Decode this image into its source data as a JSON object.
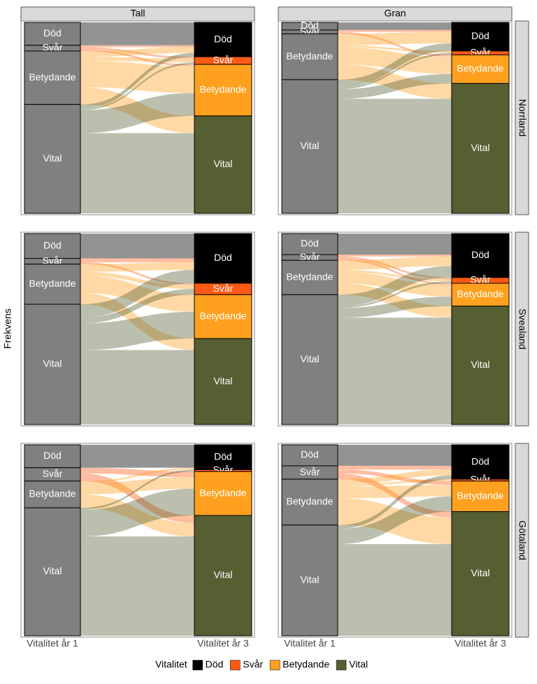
{
  "chart_data": {
    "type": "alluvial",
    "y_label": "Frekvens",
    "categories": [
      "Vitalitet år 1",
      "Vitalitet år 3"
    ],
    "columns": [
      "Tall",
      "Gran"
    ],
    "rows": [
      "Norrland",
      "Svealand",
      "Götaland"
    ],
    "legend_title": "Vitalitet",
    "stratum_color_year1": "#808080",
    "series": [
      {
        "name": "Död",
        "color": "#000000"
      },
      {
        "name": "Svår",
        "color": "#ff5a14"
      },
      {
        "name": "Betydande",
        "color": "#ffa01e"
      },
      {
        "name": "Vital",
        "color": "#555f32"
      }
    ],
    "panels": [
      {
        "column": 0,
        "row": 0,
        "flows": [
          [
            12,
            0,
            0,
            0
          ],
          [
            1,
            1,
            1,
            0
          ],
          [
            3,
            2,
            14,
            9
          ],
          [
            2,
            1,
            12,
            42
          ]
        ]
      },
      {
        "column": 1,
        "row": 0,
        "flows": [
          [
            4,
            0,
            0,
            0
          ],
          [
            1,
            0,
            1,
            0
          ],
          [
            6,
            1,
            9,
            8
          ],
          [
            4,
            1,
            5,
            60
          ]
        ]
      },
      {
        "column": 0,
        "row": 1,
        "flows": [
          [
            13,
            0,
            0,
            0
          ],
          [
            2,
            1,
            0,
            0
          ],
          [
            4,
            2,
            9,
            6
          ],
          [
            7,
            3,
            14,
            39
          ]
        ]
      },
      {
        "column": 1,
        "row": 1,
        "flows": [
          [
            11,
            0,
            0,
            0
          ],
          [
            1,
            1,
            1,
            0
          ],
          [
            5,
            1,
            6,
            6
          ],
          [
            6,
            1,
            5,
            56
          ]
        ]
      },
      {
        "column": 0,
        "row": 2,
        "flows": [
          [
            12,
            0,
            0,
            0
          ],
          [
            0,
            0,
            3,
            4
          ],
          [
            1,
            0,
            6,
            7
          ],
          [
            0,
            1,
            14,
            52
          ]
        ]
      },
      {
        "column": 1,
        "row": 2,
        "flows": [
          [
            11,
            0,
            0,
            0
          ],
          [
            2,
            0,
            2,
            3
          ],
          [
            3,
            1,
            6,
            14
          ],
          [
            2,
            0,
            8,
            48
          ]
        ]
      }
    ]
  }
}
